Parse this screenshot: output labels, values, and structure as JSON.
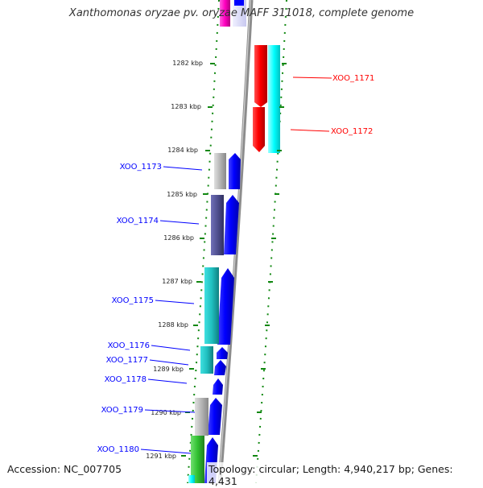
{
  "title": "Xanthomonas oryzae pv. oryzae MAFF 311018, complete genome",
  "footer": {
    "accession": "Accession: NC_007705",
    "summary": "Topology: circular; Length: 4,940,217 bp; Genes: 4,431"
  },
  "ruler": [
    "1282 kbp",
    "1283 kbp",
    "1284 kbp",
    "1285 kbp",
    "1286 kbp",
    "1287 kbp",
    "1288 kbp",
    "1289 kbp",
    "1290 kbp",
    "1291 kbp"
  ],
  "forward_genes": [
    {
      "name": "XOO_1171",
      "color": "#ff0000"
    },
    {
      "name": "XOO_1172",
      "color": "#ff0000"
    }
  ],
  "reverse_genes": [
    {
      "name": "XOO_1173",
      "color": "#0000ff"
    },
    {
      "name": "XOO_1174",
      "color": "#0000ff"
    },
    {
      "name": "XOO_1175",
      "color": "#0000ff"
    },
    {
      "name": "XOO_1176",
      "color": "#0000ff"
    },
    {
      "name": "XOO_1177",
      "color": "#0000ff"
    },
    {
      "name": "XOO_1178",
      "color": "#0000ff"
    },
    {
      "name": "XOO_1179",
      "color": "#0000ff"
    },
    {
      "name": "XOO_1180",
      "color": "#0000ff"
    }
  ],
  "colors": {
    "backbone": "#8c8c8c",
    "cog_cyan": "#00ffff",
    "cog_teal": "#20c0c0",
    "cog_gray": "#b4b4b4",
    "cog_purple": "#505090",
    "cog_green": "#30c030",
    "cog_magenta": "#ff00c0",
    "tick_green": "#118811"
  }
}
